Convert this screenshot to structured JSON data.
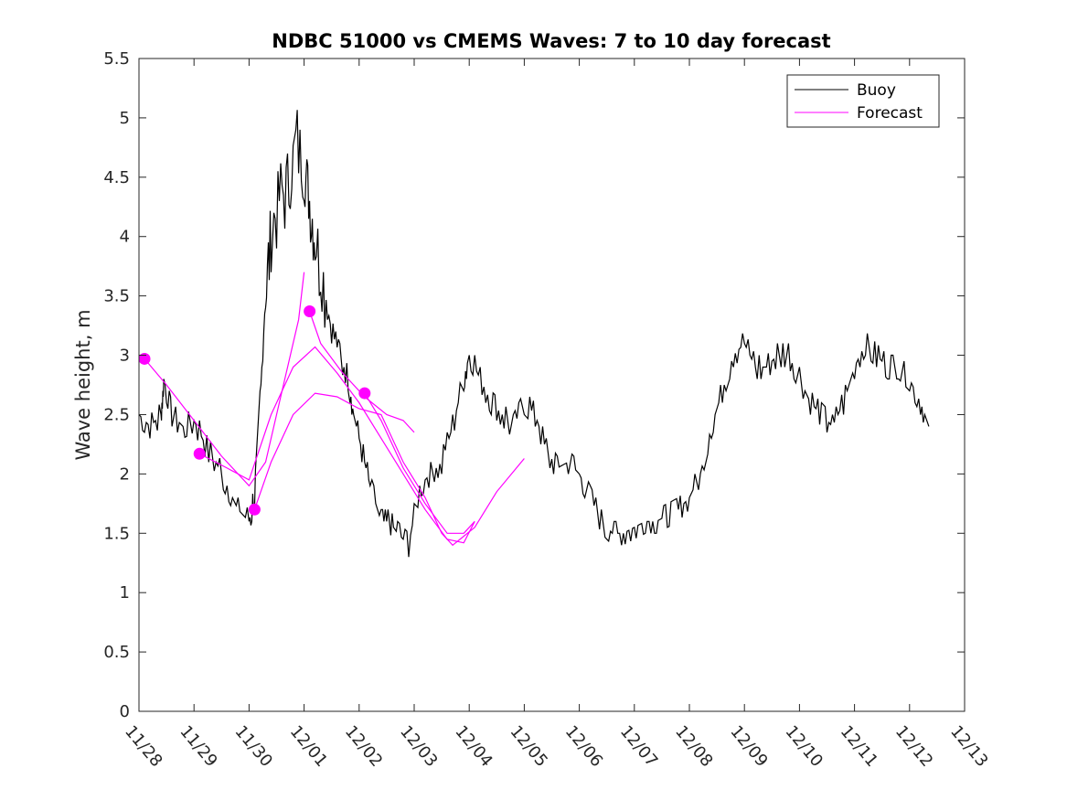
{
  "chart_data": {
    "type": "line",
    "title": "NDBC 51000 vs CMEMS Waves: 7 to 10 day forecast",
    "xlabel": "",
    "ylabel": "Wave height, m",
    "ylim": [
      0,
      5.5
    ],
    "y_ticks": [
      0,
      0.5,
      1,
      1.5,
      2,
      2.5,
      3,
      3.5,
      4,
      4.5,
      5,
      5.5
    ],
    "y_tick_labels": [
      "0",
      "0.5",
      "1",
      "1.5",
      "2",
      "2.5",
      "3",
      "3.5",
      "4",
      "4.5",
      "5",
      "5.5"
    ],
    "x_unit": "days since 11/28 00:00",
    "xlim": [
      0,
      15
    ],
    "x_ticks": [
      0,
      1,
      2,
      3,
      4,
      5,
      6,
      7,
      8,
      9,
      10,
      11,
      12,
      13,
      14,
      15
    ],
    "x_tick_labels": [
      "11/28",
      "11/29",
      "11/30",
      "12/01",
      "12/02",
      "12/03",
      "12/04",
      "12/05",
      "12/06",
      "12/07",
      "12/08",
      "12/09",
      "12/10",
      "12/11",
      "12/12",
      "12/13"
    ],
    "legend": {
      "location": "top-right",
      "entries": [
        "Buoy",
        "Forecast"
      ]
    },
    "colors": {
      "buoy": "#000000",
      "forecast": "#ff00ff"
    },
    "series": [
      {
        "name": "Buoy",
        "x": [
          0.0,
          0.2,
          0.4,
          0.45,
          0.6,
          0.8,
          1.0,
          1.2,
          1.4,
          1.6,
          1.8,
          2.0,
          2.1,
          2.2,
          2.3,
          2.4,
          2.55,
          2.7,
          2.85,
          3.0,
          3.1,
          3.2,
          3.35,
          3.5,
          3.65,
          3.8,
          3.9,
          4.05,
          4.2,
          4.4,
          4.55,
          4.7,
          4.9,
          5.1,
          5.3,
          5.5,
          5.7,
          5.9,
          6.0,
          6.2,
          6.4,
          6.6,
          6.8,
          7.0,
          7.2,
          7.4,
          7.6,
          7.8,
          8.0,
          8.2,
          8.4,
          8.6,
          8.8,
          9.0,
          9.2,
          9.4,
          9.6,
          9.8,
          10.0,
          10.2,
          10.4,
          10.6,
          10.8,
          11.0,
          11.2,
          11.4,
          11.6,
          11.8,
          12.0,
          12.2,
          12.4,
          12.6,
          12.8,
          13.0,
          13.2,
          13.4,
          13.6,
          13.8,
          14.0,
          14.2,
          14.35
        ],
        "y": [
          2.5,
          2.4,
          2.5,
          2.8,
          2.5,
          2.4,
          2.45,
          2.25,
          2.1,
          1.9,
          1.7,
          1.6,
          1.8,
          2.6,
          3.5,
          4.0,
          4.3,
          4.4,
          4.8,
          4.6,
          4.3,
          4.0,
          3.6,
          3.2,
          3.0,
          2.8,
          2.5,
          2.2,
          1.9,
          1.6,
          1.6,
          1.5,
          1.4,
          1.9,
          2.0,
          2.1,
          2.4,
          2.8,
          3.0,
          2.8,
          2.6,
          2.5,
          2.4,
          2.6,
          2.5,
          2.2,
          2.05,
          2.1,
          2.0,
          1.8,
          1.6,
          1.5,
          1.5,
          1.55,
          1.6,
          1.6,
          1.65,
          1.7,
          1.8,
          2.0,
          2.4,
          2.7,
          3.0,
          3.1,
          2.9,
          2.9,
          3.0,
          3.0,
          2.8,
          2.6,
          2.5,
          2.4,
          2.6,
          2.9,
          3.1,
          3.0,
          2.9,
          2.9,
          2.8,
          2.6,
          2.4
        ]
      },
      {
        "name": "Forecast",
        "x": [
          0.1,
          0.5,
          1.0,
          1.5,
          2.0,
          2.3,
          2.6,
          2.9,
          3.0
        ],
        "y": [
          2.97,
          2.75,
          2.45,
          2.15,
          1.9,
          2.1,
          2.7,
          3.3,
          3.7
        ]
      },
      {
        "name": "Forecast",
        "x": [
          1.1,
          1.6,
          2.0,
          2.4,
          2.8,
          3.2,
          3.6,
          4.0,
          4.4,
          4.8,
          5.2,
          5.6,
          5.9,
          6.1
        ],
        "y": [
          2.17,
          2.05,
          1.95,
          2.5,
          2.9,
          3.07,
          2.85,
          2.6,
          2.3,
          2.0,
          1.7,
          1.45,
          1.42,
          1.6
        ]
      },
      {
        "name": "Forecast",
        "x": [
          2.1,
          2.4,
          2.8,
          3.2,
          3.6,
          4.0,
          4.4,
          4.8,
          5.2,
          5.5,
          5.7,
          6.1,
          6.5,
          7.0
        ],
        "y": [
          1.7,
          2.1,
          2.5,
          2.68,
          2.65,
          2.55,
          2.5,
          2.1,
          1.8,
          1.5,
          1.4,
          1.55,
          1.85,
          2.13
        ]
      },
      {
        "name": "Forecast",
        "x": [
          3.1,
          3.3,
          3.7,
          4.1,
          4.5,
          4.8,
          5.0
        ],
        "y": [
          3.37,
          3.1,
          2.85,
          2.65,
          2.5,
          2.45,
          2.35
        ]
      },
      {
        "name": "Forecast",
        "x": [
          4.1,
          4.4,
          4.8,
          5.2,
          5.6,
          5.9,
          6.1
        ],
        "y": [
          2.68,
          2.45,
          2.05,
          1.75,
          1.5,
          1.5,
          1.6
        ]
      }
    ],
    "markers": {
      "name": "Forecast start",
      "x": [
        0.1,
        1.1,
        2.1,
        3.1,
        4.1
      ],
      "y": [
        2.97,
        2.17,
        1.7,
        3.37,
        2.68
      ]
    }
  }
}
